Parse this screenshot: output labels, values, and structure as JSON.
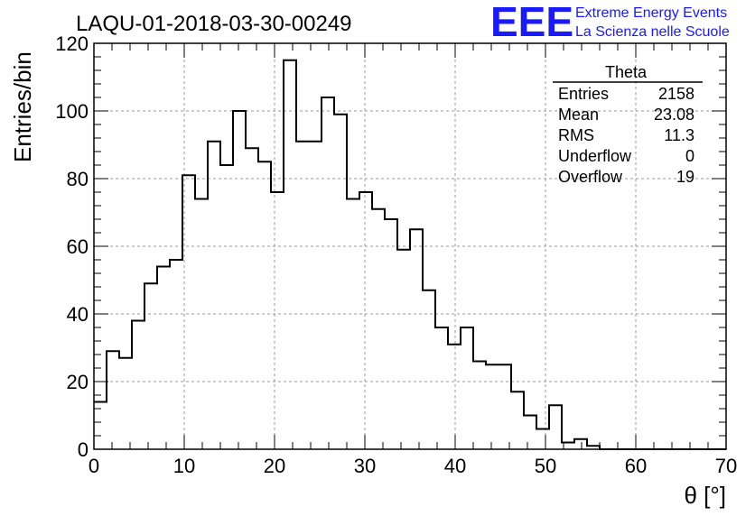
{
  "chart_data": {
    "type": "bar",
    "title": "LAQU-01-2018-03-30-00249",
    "xlabel": "θ [°]",
    "ylabel": "Entries/bin",
    "xlim": [
      0,
      70
    ],
    "ylim": [
      0,
      120
    ],
    "x_ticks": [
      0,
      10,
      20,
      30,
      40,
      50,
      60,
      70
    ],
    "y_ticks": [
      0,
      20,
      40,
      60,
      80,
      100,
      120
    ],
    "grid": true,
    "bin_width": 1.4,
    "bin_edges_start": 0,
    "values": [
      14,
      29,
      27,
      38,
      49,
      54,
      56,
      81,
      74,
      91,
      84,
      100,
      89,
      85,
      76,
      115,
      91,
      91,
      104,
      99,
      74,
      76,
      71,
      68,
      59,
      65,
      47,
      36,
      31,
      36,
      26,
      25,
      25,
      17,
      10,
      6,
      13,
      2,
      3,
      1,
      0,
      0,
      0,
      0,
      0,
      0,
      0,
      0,
      0,
      0
    ],
    "stats_box": {
      "title": "Theta",
      "rows": [
        {
          "label": "Entries",
          "value": "2158"
        },
        {
          "label": "Mean",
          "value": "23.08"
        },
        {
          "label": "RMS",
          "value": "11.3"
        },
        {
          "label": "Underflow",
          "value": "0"
        },
        {
          "label": "Overflow",
          "value": "19"
        }
      ]
    },
    "line_color": "#000000",
    "grid_color": "#9a9a9a"
  },
  "logo": {
    "mark": "EEE",
    "line1": "Extreme Energy Events",
    "line2": "La Scienza nelle Scuole",
    "color": "#1a1aff"
  }
}
